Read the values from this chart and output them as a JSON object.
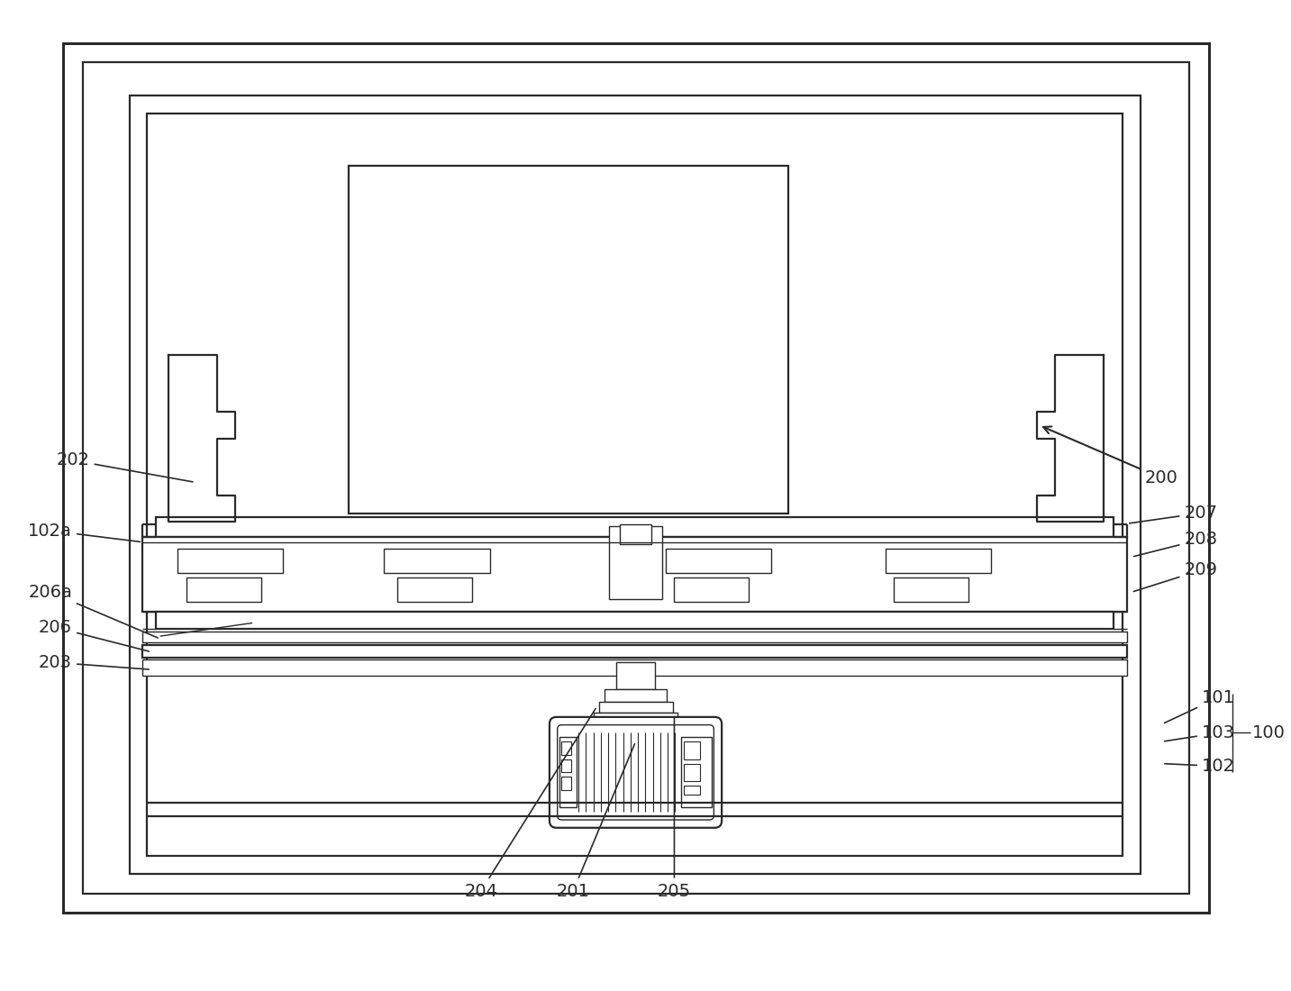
{
  "background_color": "#ffffff",
  "line_color": "#2a2a2a",
  "fig_width": 14.33,
  "fig_height": 11.0,
  "lw_thick": 2.2,
  "lw_med": 1.6,
  "lw_thin": 1.0,
  "label_fs": 14
}
